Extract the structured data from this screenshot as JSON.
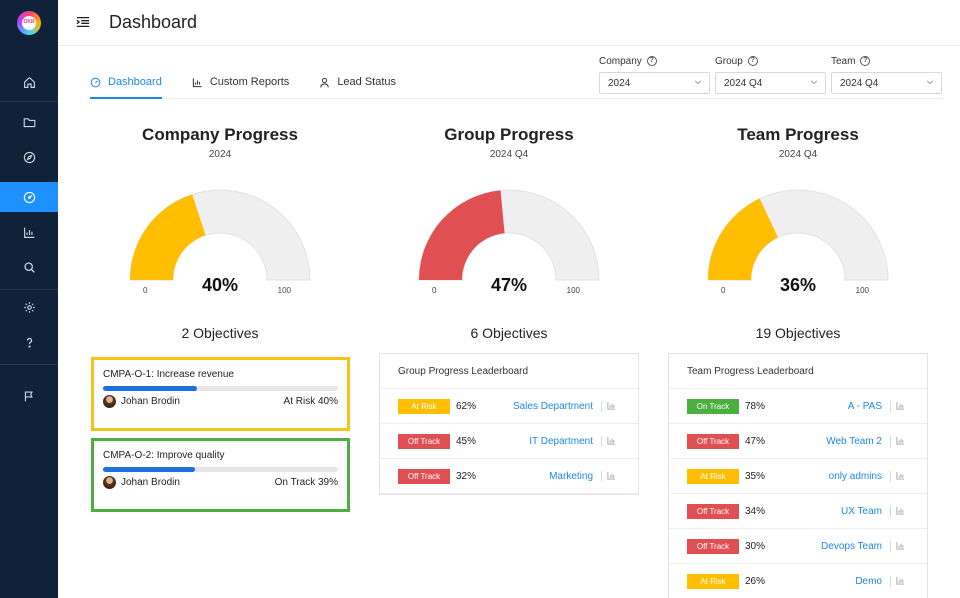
{
  "app": {
    "logo_text": "OKR"
  },
  "header": {
    "title": "Dashboard"
  },
  "tabs": [
    {
      "label": "Dashboard",
      "icon": "gauge-icon",
      "active": true
    },
    {
      "label": "Custom Reports",
      "icon": "bar-chart-icon",
      "active": false
    },
    {
      "label": "Lead Status",
      "icon": "user-icon",
      "active": false
    }
  ],
  "filters": {
    "company": {
      "label": "Company",
      "value": "2024"
    },
    "group": {
      "label": "Group",
      "value": "2024 Q4"
    },
    "team": {
      "label": "Team",
      "value": "2024 Q4"
    }
  },
  "progress": [
    {
      "title": "Company Progress",
      "subtitle": "2024",
      "percent": 40,
      "percent_label": "40%",
      "min": "0",
      "max": "100",
      "color": "#ffbf00",
      "objectives": "2 Objectives"
    },
    {
      "title": "Group Progress",
      "subtitle": "2024 Q4",
      "percent": 47,
      "percent_label": "47%",
      "min": "0",
      "max": "100",
      "color": "#e05052",
      "objectives": "6 Objectives"
    },
    {
      "title": "Team Progress",
      "subtitle": "2024 Q4",
      "percent": 36,
      "percent_label": "36%",
      "min": "0",
      "max": "100",
      "color": "#ffbf00",
      "objectives": "19 Objectives"
    }
  ],
  "objectives": [
    {
      "title": "CMPA-O-1: Increase revenue",
      "owner": "Johan Brodin",
      "status": "At Risk 40%",
      "progress": 0.4,
      "border_color": "#f7c21a"
    },
    {
      "title": "CMPA-O-2: Improve quality",
      "owner": "Johan Brodin",
      "status": "On Track 39%",
      "progress": 0.39,
      "border_color": "#4caf3f"
    }
  ],
  "group_board": {
    "title": "Group Progress Leaderboard",
    "rows": [
      {
        "badge": "At Risk",
        "badge_color": "#ffbf00",
        "pct": "62%",
        "name": "Sales Department"
      },
      {
        "badge": "Off Track",
        "badge_color": "#e05052",
        "pct": "45%",
        "name": "IT Department"
      },
      {
        "badge": "Off Track",
        "badge_color": "#e05052",
        "pct": "32%",
        "name": "Marketing"
      }
    ]
  },
  "team_board": {
    "title": "Team Progress Leaderboard",
    "rows": [
      {
        "badge": "On Track",
        "badge_color": "#4caf3f",
        "pct": "78%",
        "name": "A - PAS"
      },
      {
        "badge": "Off Track",
        "badge_color": "#e05052",
        "pct": "47%",
        "name": "Web Team 2"
      },
      {
        "badge": "At Risk",
        "badge_color": "#ffbf00",
        "pct": "35%",
        "name": "only admins"
      },
      {
        "badge": "Off Track",
        "badge_color": "#e05052",
        "pct": "34%",
        "name": "UX Team"
      },
      {
        "badge": "Off Track",
        "badge_color": "#e05052",
        "pct": "30%",
        "name": "Devops Team"
      },
      {
        "badge": "At Risk",
        "badge_color": "#ffbf00",
        "pct": "26%",
        "name": "Demo"
      }
    ]
  }
}
